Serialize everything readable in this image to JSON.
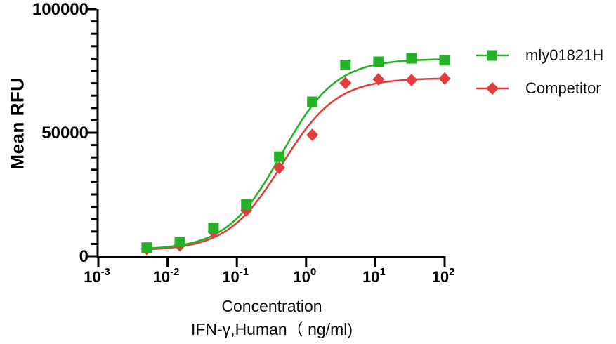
{
  "chart_data": {
    "type": "scatter",
    "title": "",
    "x_scale": "log10",
    "x": [
      0.005,
      0.015,
      0.046,
      0.137,
      0.41,
      1.23,
      3.7,
      11.1,
      33.3,
      100
    ],
    "series": [
      {
        "name": "mly01821H",
        "marker": "square",
        "color": "#26b226",
        "values": [
          3500,
          5800,
          11400,
          21000,
          40300,
          62500,
          77400,
          78700,
          80100,
          79300
        ],
        "fit_4pl": {
          "bottom": 2600,
          "top": 79900,
          "ec50": 0.44,
          "hill": 1.1
        }
      },
      {
        "name": "Competitor",
        "marker": "diamond",
        "color": "#e23d3d",
        "values": [
          3000,
          4400,
          9900,
          18500,
          35800,
          49100,
          70100,
          71600,
          71300,
          71900
        ],
        "fit_4pl": {
          "bottom": 2300,
          "top": 72100,
          "ec50": 0.45,
          "hill": 1.1
        }
      }
    ],
    "xlabel_line1": "Concentration",
    "xlabel_line2": "IFN-γ,Human（ ng/ml)",
    "ylabel": "Mean RFU",
    "xlim_log": [
      -3,
      2
    ],
    "x_tick_exponents": [
      -3,
      -2,
      -1,
      0,
      1,
      2
    ],
    "x_tick_base": "10",
    "ylim": [
      0,
      100000
    ],
    "y_major_ticks": [
      0,
      50000,
      100000
    ],
    "y_minor_step": 5000,
    "grid": "off",
    "legend_position": "right",
    "axis_color": "#000000"
  }
}
